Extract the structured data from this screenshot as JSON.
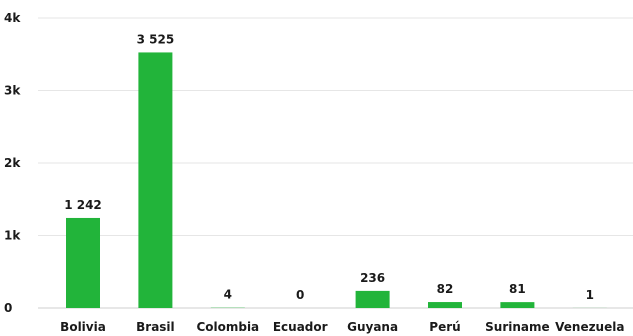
{
  "chart_data": {
    "type": "bar",
    "categories": [
      "Bolivia",
      "Brasil",
      "Colombia",
      "Ecuador",
      "Guyana",
      "Perú",
      "Suriname",
      "Venezuela"
    ],
    "values": [
      1242,
      3525,
      4,
      0,
      236,
      82,
      81,
      1
    ],
    "value_labels": [
      "1 242",
      "3 525",
      "4",
      "0",
      "236",
      "82",
      "81",
      "1"
    ],
    "yticks": [
      {
        "value": 0,
        "label": "0"
      },
      {
        "value": 1000,
        "label": "1k"
      },
      {
        "value": 2000,
        "label": "2k"
      },
      {
        "value": 3000,
        "label": "3k"
      },
      {
        "value": 4000,
        "label": "4k"
      }
    ],
    "ylim": [
      0,
      4000
    ],
    "grid": true,
    "bar_color": "#22b43a",
    "title": "",
    "xlabel": "",
    "ylabel": ""
  }
}
